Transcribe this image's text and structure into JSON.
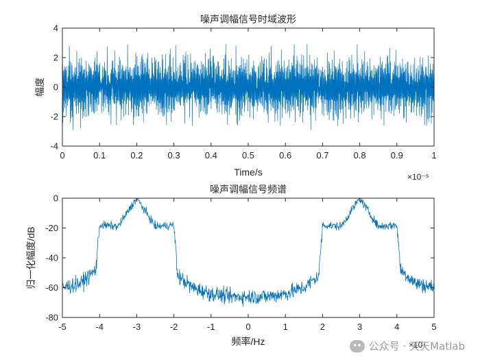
{
  "chart_data": [
    {
      "type": "line",
      "title": "噪声调幅信号时域波形",
      "xlabel": "Time/s",
      "ylabel": "幅度",
      "x_exponent_label": "×10⁻⁵",
      "xlim": [
        0,
        1
      ],
      "ylim": [
        -4,
        4
      ],
      "xticks": [
        "0",
        "0.1",
        "0.2",
        "0.3",
        "0.4",
        "0.5",
        "0.6",
        "0.7",
        "0.8",
        "0.9",
        "1"
      ],
      "yticks": [
        "-4",
        "-2",
        "0",
        "2",
        "4"
      ],
      "grid": false,
      "line_color": "#0072bd",
      "series": [
        {
          "description_values": "noise-modulated waveform, amplitude mostly within ±2.5, occasional peaks near ±2.9",
          "num_points": 1500,
          "envelope_min": -2.9,
          "envelope_max": 2.9
        }
      ]
    },
    {
      "type": "line",
      "title": "噪声调幅信号频谱",
      "xlabel": "频率/Hz",
      "ylabel": "归一化幅度/dB",
      "x_exponent_label": "×10⁷",
      "xlim": [
        -5,
        5
      ],
      "ylim": [
        -80,
        0
      ],
      "xticks": [
        "-5",
        "-4",
        "-3",
        "-2",
        "-1",
        "0",
        "1",
        "2",
        "3",
        "4",
        "5"
      ],
      "yticks": [
        "-80",
        "-60",
        "-40",
        "-20",
        "0"
      ],
      "grid": false,
      "line_color": "#0072bd",
      "series": [
        {
          "x": [
            -5,
            -4.5,
            -4.1,
            -4.0,
            -3.5,
            -3.0,
            -2.5,
            -2.0,
            -1.9,
            -1.5,
            -1.0,
            -0.5,
            0,
            0.5,
            1.0,
            1.5,
            1.9,
            2.0,
            2.5,
            3.0,
            3.5,
            4.0,
            4.1,
            4.5,
            5
          ],
          "y": [
            -60,
            -57,
            -48,
            -18,
            -19,
            0,
            -19,
            -18,
            -52,
            -60,
            -64,
            -66,
            -66,
            -66,
            -64,
            -60,
            -52,
            -18,
            -19,
            0,
            -19,
            -18,
            -48,
            -57,
            -60
          ]
        }
      ]
    }
  ],
  "watermark": {
    "icon": "wechat-icon",
    "text": "公众号 · 天天Matlab"
  }
}
